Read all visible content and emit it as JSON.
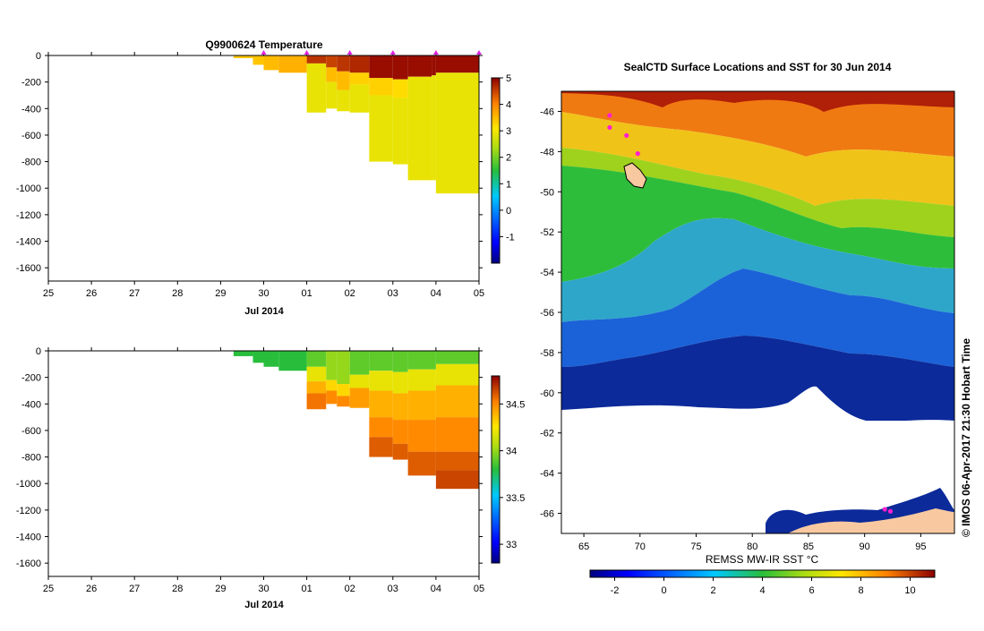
{
  "chart_data": [
    {
      "id": "temperature",
      "type": "heatmap",
      "title": "Q9900624  Temperature",
      "xlabel": "Jul 2014",
      "ylabel": "",
      "x_ticks": [
        "25",
        "26",
        "27",
        "28",
        "29",
        "30",
        "01",
        "02",
        "03",
        "04",
        "05"
      ],
      "x_range": [
        0,
        10
      ],
      "y_ticks": [
        0,
        -200,
        -400,
        -600,
        -800,
        -1000,
        -1200,
        -1400,
        -1600
      ],
      "ylim": [
        -1700,
        0
      ],
      "colorbar": {
        "range": [
          -2,
          5
        ],
        "ticks": [
          5,
          4,
          3,
          2,
          1,
          0,
          -1
        ]
      },
      "profile_markers_x": [
        5.0,
        6.0,
        7.0,
        8.0,
        9.0,
        10.0
      ],
      "profiles": [
        {
          "x0": 4.3,
          "x1": 4.75,
          "depth": -20,
          "layers": [
            [
              -20,
              3.4
            ]
          ]
        },
        {
          "x0": 4.75,
          "x1": 5.0,
          "depth": -70,
          "layers": [
            [
              -70,
              3.4
            ]
          ]
        },
        {
          "x0": 5.0,
          "x1": 5.35,
          "depth": -110,
          "layers": [
            [
              -110,
              3.5
            ]
          ]
        },
        {
          "x0": 5.35,
          "x1": 6.0,
          "depth": -130,
          "layers": [
            [
              -130,
              3.6
            ]
          ]
        },
        {
          "x0": 6.0,
          "x1": 6.45,
          "depth": -430,
          "layers": [
            [
              -60,
              4.6
            ],
            [
              -430,
              2.9
            ]
          ]
        },
        {
          "x0": 6.45,
          "x1": 6.7,
          "depth": -400,
          "layers": [
            [
              -90,
              4.5
            ],
            [
              -200,
              3.5
            ],
            [
              -400,
              2.9
            ]
          ]
        },
        {
          "x0": 6.7,
          "x1": 7.0,
          "depth": -420,
          "layers": [
            [
              -120,
              4.6
            ],
            [
              -260,
              3.5
            ],
            [
              -420,
              2.9
            ]
          ]
        },
        {
          "x0": 7.0,
          "x1": 7.45,
          "depth": -430,
          "layers": [
            [
              -130,
              4.7
            ],
            [
              -220,
              3.3
            ],
            [
              -430,
              2.9
            ]
          ]
        },
        {
          "x0": 7.45,
          "x1": 8.0,
          "depth": -800,
          "layers": [
            [
              -170,
              4.9
            ],
            [
              -300,
              3.3
            ],
            [
              -800,
              2.9
            ]
          ]
        },
        {
          "x0": 8.0,
          "x1": 8.35,
          "depth": -820,
          "layers": [
            [
              -180,
              4.9
            ],
            [
              -320,
              3.2
            ],
            [
              -820,
              2.9
            ]
          ]
        },
        {
          "x0": 8.35,
          "x1": 8.9,
          "depth": -940,
          "layers": [
            [
              -160,
              4.9
            ],
            [
              -940,
              2.9
            ]
          ]
        },
        {
          "x0": 8.9,
          "x1": 9.0,
          "depth": -940,
          "layers": [
            [
              -150,
              4.9
            ],
            [
              -940,
              2.9
            ]
          ]
        },
        {
          "x0": 9.0,
          "x1": 10.0,
          "depth": -1040,
          "layers": [
            [
              -130,
              4.9
            ],
            [
              -1040,
              2.9
            ]
          ]
        }
      ]
    },
    {
      "id": "salinity",
      "type": "heatmap",
      "title": "",
      "xlabel": "Jul 2014",
      "ylabel": "",
      "x_ticks": [
        "25",
        "26",
        "27",
        "28",
        "29",
        "30",
        "01",
        "02",
        "03",
        "04",
        "05"
      ],
      "x_range": [
        0,
        10
      ],
      "y_ticks": [
        0,
        -200,
        -400,
        -600,
        -800,
        -1000,
        -1200,
        -1400,
        -1600
      ],
      "ylim": [
        -1700,
        0
      ],
      "colorbar": {
        "range": [
          32.8,
          34.8
        ],
        "ticks": [
          34.5,
          34,
          33.5,
          33
        ]
      },
      "profiles": [
        {
          "x0": 4.3,
          "x1": 4.75,
          "depth": -40,
          "layers": [
            [
              -40,
              33.8
            ]
          ]
        },
        {
          "x0": 4.75,
          "x1": 5.0,
          "depth": -90,
          "layers": [
            [
              -90,
              33.8
            ]
          ]
        },
        {
          "x0": 5.0,
          "x1": 5.35,
          "depth": -120,
          "layers": [
            [
              -120,
              33.8
            ]
          ]
        },
        {
          "x0": 5.35,
          "x1": 6.0,
          "depth": -150,
          "layers": [
            [
              -150,
              33.8
            ]
          ]
        },
        {
          "x0": 6.0,
          "x1": 6.45,
          "depth": -440,
          "layers": [
            [
              -120,
              33.9
            ],
            [
              -230,
              34.2
            ],
            [
              -320,
              34.4
            ],
            [
              -440,
              34.55
            ]
          ]
        },
        {
          "x0": 6.45,
          "x1": 6.7,
          "depth": -400,
          "layers": [
            [
              -220,
              34.0
            ],
            [
              -300,
              34.3
            ],
            [
              -400,
              34.5
            ]
          ]
        },
        {
          "x0": 6.7,
          "x1": 7.0,
          "depth": -420,
          "layers": [
            [
              -250,
              34.0
            ],
            [
              -340,
              34.3
            ],
            [
              -420,
              34.5
            ]
          ]
        },
        {
          "x0": 7.0,
          "x1": 7.45,
          "depth": -430,
          "layers": [
            [
              -180,
              33.9
            ],
            [
              -280,
              34.2
            ],
            [
              -430,
              34.45
            ]
          ]
        },
        {
          "x0": 7.45,
          "x1": 8.0,
          "depth": -800,
          "layers": [
            [
              -150,
              33.9
            ],
            [
              -300,
              34.2
            ],
            [
              -500,
              34.4
            ],
            [
              -650,
              34.5
            ],
            [
              -800,
              34.6
            ]
          ]
        },
        {
          "x0": 8.0,
          "x1": 8.35,
          "depth": -820,
          "layers": [
            [
              -160,
              33.9
            ],
            [
              -320,
              34.2
            ],
            [
              -520,
              34.4
            ],
            [
              -700,
              34.5
            ],
            [
              -820,
              34.6
            ]
          ]
        },
        {
          "x0": 8.35,
          "x1": 9.0,
          "depth": -940,
          "layers": [
            [
              -140,
              33.9
            ],
            [
              -300,
              34.2
            ],
            [
              -520,
              34.4
            ],
            [
              -760,
              34.5
            ],
            [
              -940,
              34.6
            ]
          ]
        },
        {
          "x0": 9.0,
          "x1": 10.0,
          "depth": -1040,
          "layers": [
            [
              -100,
              33.9
            ],
            [
              -260,
              34.2
            ],
            [
              -500,
              34.4
            ],
            [
              -760,
              34.5
            ],
            [
              -900,
              34.6
            ],
            [
              -1040,
              34.65
            ]
          ]
        }
      ]
    },
    {
      "id": "sst_map",
      "type": "heatmap",
      "title": "SealCTD Surface Locations and SST for 30 Jun 2014",
      "xlabel": "REMSS MW-IR SST °C",
      "ylabel": "",
      "xlim": [
        63,
        98
      ],
      "ylim": [
        -67,
        -45
      ],
      "x_ticks": [
        65,
        70,
        75,
        80,
        85,
        90,
        95
      ],
      "y_ticks": [
        -46,
        -48,
        -50,
        -52,
        -54,
        -56,
        -58,
        -60,
        -62,
        -64,
        -66
      ],
      "colorbar": {
        "range": [
          -3,
          11
        ],
        "ticks": [
          -2,
          0,
          2,
          4,
          6,
          8,
          10
        ]
      },
      "seal_locations": [
        {
          "lon": 67.3,
          "lat": -46.2
        },
        {
          "lon": 67.3,
          "lat": -46.8
        },
        {
          "lon": 68.8,
          "lat": -47.2
        },
        {
          "lon": 69.8,
          "lat": -48.1
        },
        {
          "lon": 91.8,
          "lat": -65.8
        },
        {
          "lon": 92.3,
          "lat": -65.9
        }
      ]
    }
  ],
  "credit": "© IMOS 06-Apr-2017 21:30 Hobart Time"
}
